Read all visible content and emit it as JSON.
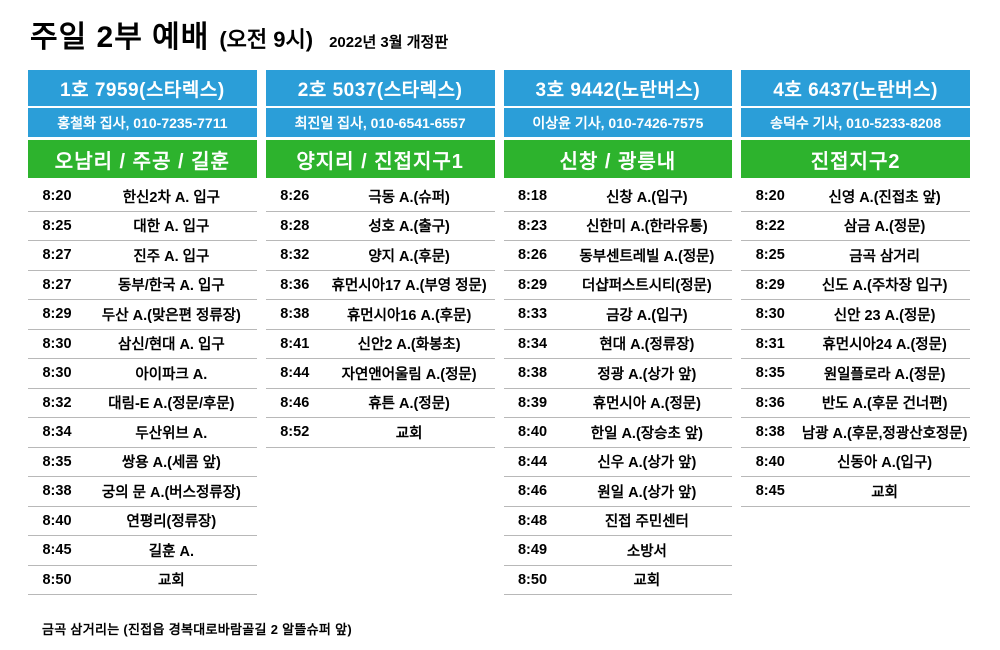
{
  "title": "주일 2부 예배",
  "title_suffix": "(오전 9시)",
  "edition": "2022년 3월 개정판",
  "footer": "금곡 삼거리는 (진접읍 경복대로바람골길 2 알뜰슈퍼 앞)",
  "colors": {
    "header_blue": "#2b9ed8",
    "route_green": "#2db32d"
  },
  "columns": [
    {
      "bus": "1호 7959(스타렉스)",
      "driver": "홍철화 집사, 010-7235-7711",
      "route": "오남리 / 주공 / 길훈",
      "stops": [
        [
          "8:20",
          "한신2차 A. 입구"
        ],
        [
          "8:25",
          "대한 A. 입구"
        ],
        [
          "8:27",
          "진주 A. 입구"
        ],
        [
          "8:27",
          "동부/한국 A. 입구"
        ],
        [
          "8:29",
          "두산 A.(맞은편 정류장)"
        ],
        [
          "8:30",
          "삼신/현대 A. 입구"
        ],
        [
          "8:30",
          "아이파크 A."
        ],
        [
          "8:32",
          "대림-E A.(정문/후문)"
        ],
        [
          "8:34",
          "두산위브 A."
        ],
        [
          "8:35",
          "쌍용 A.(세콤 앞)"
        ],
        [
          "8:38",
          "궁의 문 A.(버스정류장)"
        ],
        [
          "8:40",
          "연평리(정류장)"
        ],
        [
          "8:45",
          "길훈 A."
        ],
        [
          "8:50",
          "교회"
        ]
      ]
    },
    {
      "bus": "2호 5037(스타렉스)",
      "driver": "최진일 집사, 010-6541-6557",
      "route": "양지리 / 진접지구1",
      "stops": [
        [
          "8:26",
          "극동 A.(슈퍼)"
        ],
        [
          "8:28",
          "성호 A.(출구)"
        ],
        [
          "8:32",
          "양지 A.(후문)"
        ],
        [
          "8:36",
          "휴먼시아17 A.(부영 정문)"
        ],
        [
          "8:38",
          "휴먼시아16 A.(후문)"
        ],
        [
          "8:41",
          "신안2 A.(화봉초)"
        ],
        [
          "8:44",
          "자연앤어울림 A.(정문)"
        ],
        [
          "8:46",
          "휴튼 A.(정문)"
        ],
        [
          "8:52",
          "교회"
        ]
      ]
    },
    {
      "bus": "3호 9442(노란버스)",
      "driver": "이상윤 기사, 010-7426-7575",
      "route": "신창 / 광릉내",
      "stops": [
        [
          "8:18",
          "신창 A.(입구)"
        ],
        [
          "8:23",
          "신한미 A.(한라유통)"
        ],
        [
          "8:26",
          "동부센트레빌 A.(정문)"
        ],
        [
          "8:29",
          "더샵퍼스트시티(정문)"
        ],
        [
          "8:33",
          "금강 A.(입구)"
        ],
        [
          "8:34",
          "현대 A.(정류장)"
        ],
        [
          "8:38",
          "정광 A.(상가 앞)"
        ],
        [
          "8:39",
          "휴먼시아 A.(정문)"
        ],
        [
          "8:40",
          "한일 A.(장승초 앞)"
        ],
        [
          "8:44",
          "신우 A.(상가 앞)"
        ],
        [
          "8:46",
          "원일 A.(상가 앞)"
        ],
        [
          "8:48",
          "진접 주민센터"
        ],
        [
          "8:49",
          "소방서"
        ],
        [
          "8:50",
          "교회"
        ]
      ]
    },
    {
      "bus": "4호 6437(노란버스)",
      "driver": "송덕수 기사, 010-5233-8208",
      "route": "진접지구2",
      "stops": [
        [
          "8:20",
          "신영 A.(진접초 앞)"
        ],
        [
          "8:22",
          "삼금 A.(정문)"
        ],
        [
          "8:25",
          "금곡 삼거리"
        ],
        [
          "8:29",
          "신도 A.(주차장 입구)"
        ],
        [
          "8:30",
          "신안 23 A.(정문)"
        ],
        [
          "8:31",
          "휴먼시아24 A.(정문)"
        ],
        [
          "8:35",
          "원일플로라 A.(정문)"
        ],
        [
          "8:36",
          "반도 A.(후문 건너편)"
        ],
        [
          "8:38",
          "남광 A.(후문,정광산호정문)"
        ],
        [
          "8:40",
          "신동아 A.(입구)"
        ],
        [
          "8:45",
          "교회"
        ]
      ]
    }
  ]
}
